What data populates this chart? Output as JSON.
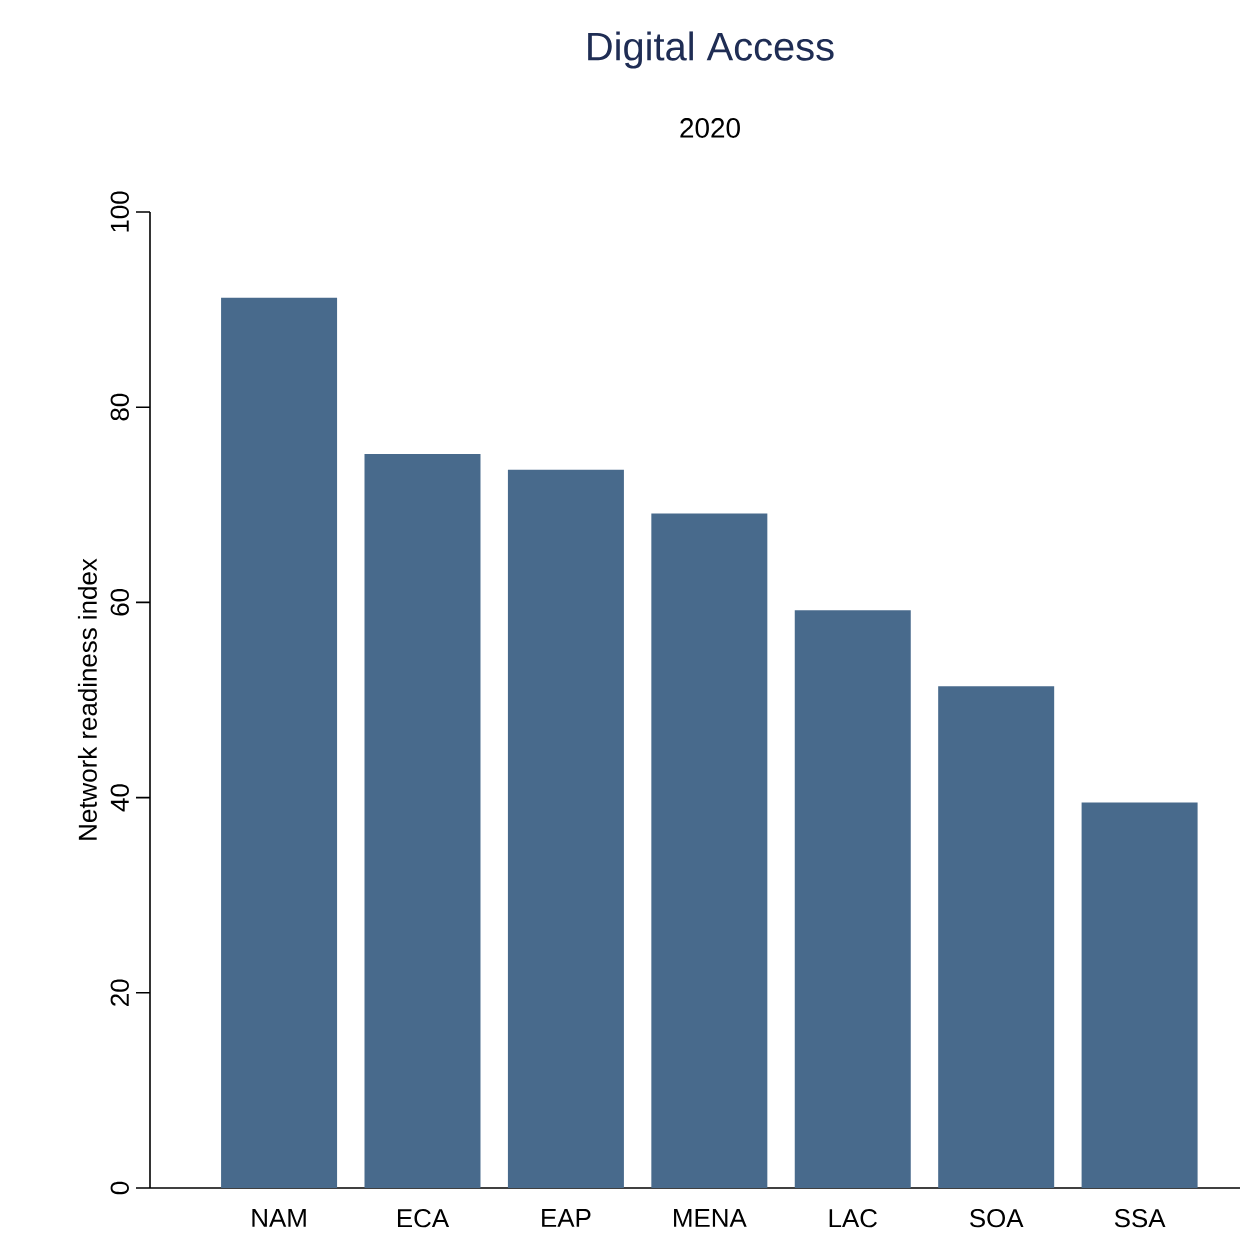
{
  "chart_data": {
    "type": "bar",
    "title": "Digital Access",
    "subtitle": "2020",
    "ylabel": "Network readiness index",
    "categories": [
      "NAM",
      "ECA",
      "EAP",
      "MENA",
      "LAC",
      "SOA",
      "SSA"
    ],
    "values": [
      91.2,
      75.2,
      73.6,
      69.1,
      59.2,
      51.4,
      39.5
    ],
    "color": "#486a8c",
    "ylim": [
      0,
      100
    ],
    "yticks": [
      0,
      20,
      40,
      60,
      80,
      100
    ],
    "grid": false
  }
}
